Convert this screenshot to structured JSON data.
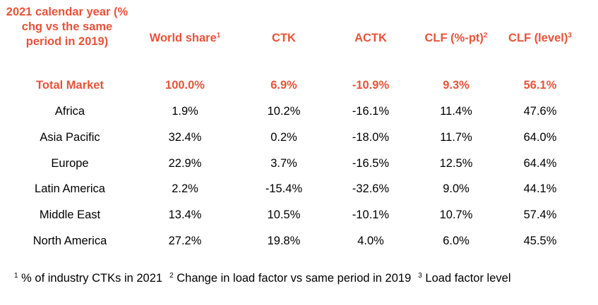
{
  "colors": {
    "accent": "#e8533a",
    "text": "#000000",
    "background": "#ffffff"
  },
  "chart_data": {
    "type": "table",
    "columns": [
      {
        "label": "2021 calendar year (% chg vs the same period in 2019)",
        "sup": ""
      },
      {
        "label": "World share",
        "sup": "1"
      },
      {
        "label": "CTK",
        "sup": ""
      },
      {
        "label": "ACTK",
        "sup": ""
      },
      {
        "label": "CLF (%-pt)",
        "sup": "2"
      },
      {
        "label": "CLF (level)",
        "sup": "3"
      }
    ],
    "rows": [
      {
        "region": "Total Market",
        "values": [
          "100.0%",
          "6.9%",
          "-10.9%",
          "9.3%",
          "56.1%"
        ],
        "highlight": true
      },
      {
        "region": "Africa",
        "values": [
          "1.9%",
          "10.2%",
          "-16.1%",
          "11.4%",
          "47.6%"
        ],
        "highlight": false
      },
      {
        "region": "Asia Pacific",
        "values": [
          "32.4%",
          "0.2%",
          "-18.0%",
          "11.7%",
          "64.0%"
        ],
        "highlight": false
      },
      {
        "region": "Europe",
        "values": [
          "22.9%",
          "3.7%",
          "-16.5%",
          "12.5%",
          "64.4%"
        ],
        "highlight": false
      },
      {
        "region": "Latin America",
        "values": [
          "2.2%",
          "-15.4%",
          "-32.6%",
          "9.0%",
          "44.1%"
        ],
        "highlight": false
      },
      {
        "region": "Middle East",
        "values": [
          "13.4%",
          "10.5%",
          "-10.1%",
          "10.7%",
          "57.4%"
        ],
        "highlight": false
      },
      {
        "region": "North America",
        "values": [
          "27.2%",
          "19.8%",
          "4.0%",
          "6.0%",
          "45.5%"
        ],
        "highlight": false
      }
    ],
    "footnotes": [
      {
        "marker": "1",
        "text": "% of industry CTKs in 2021"
      },
      {
        "marker": "2",
        "text": "Change in load factor vs same period in 2019"
      },
      {
        "marker": "3",
        "text": "Load factor level"
      }
    ]
  }
}
